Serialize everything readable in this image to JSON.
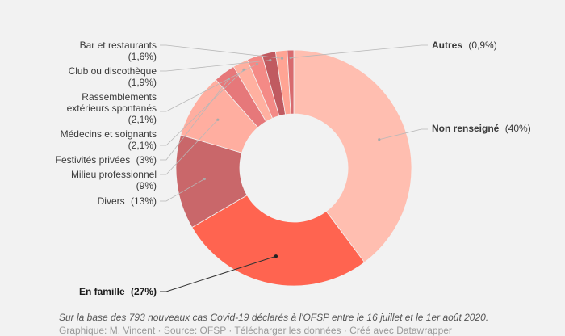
{
  "chart_data": {
    "type": "pie",
    "donut": true,
    "slices": [
      {
        "key": "nonrens",
        "name": "Non renseigné",
        "pct": "(40%)",
        "value": 40,
        "color": "#ffbeb0",
        "bold": false,
        "dark": false
      },
      {
        "key": "famille",
        "name": "En famille",
        "pct": "(27%)",
        "value": 27,
        "color": "#ff6450",
        "bold": true,
        "dark": true
      },
      {
        "key": "divers",
        "name": "Divers",
        "pct": "(13%)",
        "value": 13,
        "color": "#c9676a",
        "bold": false,
        "dark": false
      },
      {
        "key": "milieu",
        "name": "Milieu professionnel",
        "pct": "(9%)",
        "value": 9,
        "color": "#ffaea0",
        "bold": false,
        "dark": false
      },
      {
        "key": "festiv",
        "name": "Festivités privées",
        "pct": "(3%)",
        "value": 3,
        "color": "#e6787a",
        "bold": false,
        "dark": false
      },
      {
        "key": "medecins",
        "name": "Médecins et soignants",
        "pct": "(2,1%)",
        "value": 2.1,
        "color": "#ffb0a0",
        "bold": false,
        "dark": false
      },
      {
        "key": "rassembl",
        "name": "Rassemblements extérieurs spontanés",
        "pct": "(2,1%)",
        "value": 2.1,
        "color": "#f48a86",
        "bold": false,
        "dark": false
      },
      {
        "key": "club",
        "name": "Club ou discothèque",
        "pct": "(1,9%)",
        "value": 1.9,
        "color": "#c05a60",
        "bold": false,
        "dark": false
      },
      {
        "key": "bar",
        "name": "Bar et restaurants",
        "pct": "(1,6%)",
        "value": 1.6,
        "color": "#ffa494",
        "bold": false,
        "dark": false
      },
      {
        "key": "autres",
        "name": "Autres",
        "pct": "(0,9%)",
        "value": 0.9,
        "color": "#d86a6e",
        "bold": false,
        "dark": false
      }
    ]
  },
  "label_lines": {
    "rassembl_1": "Rassemblements",
    "rassembl_2": "extérieurs spontanés"
  },
  "footnote": "Sur la base des 793 nouveaux cas Covid-19 déclarés à l'OFSP entre le 16 juillet et le 1er août 2020.",
  "source": "Graphique: M. Vincent · Source: OFSP · Télécharger les données · Créé avec Datawrapper"
}
